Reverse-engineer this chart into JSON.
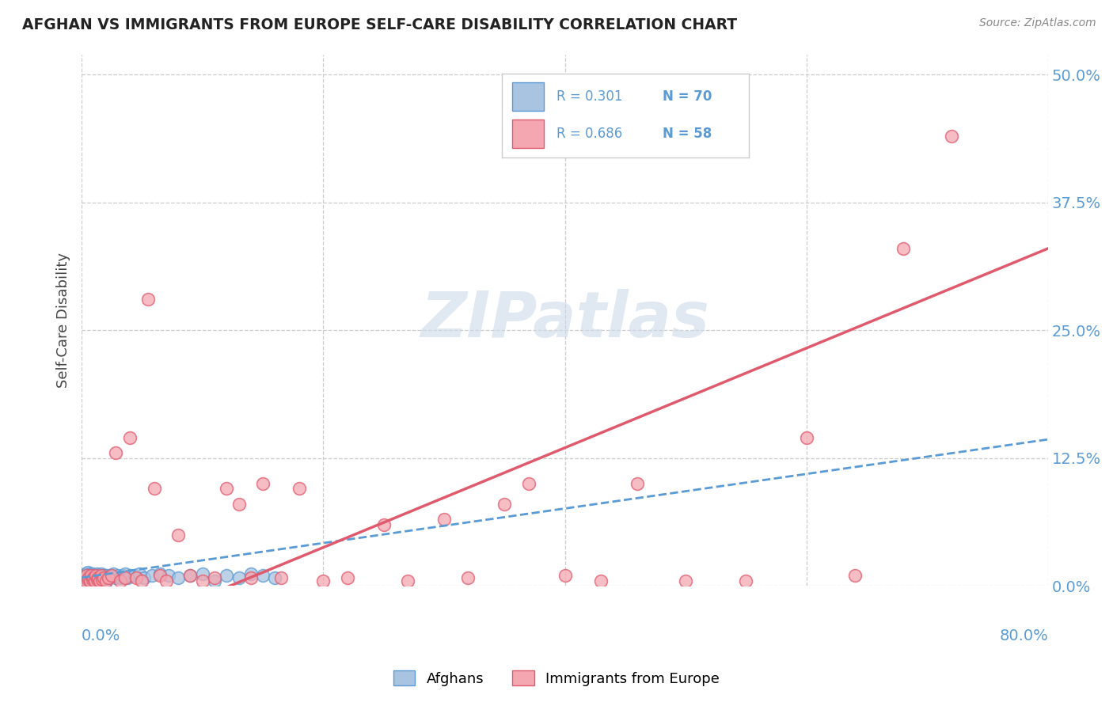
{
  "title": "AFGHAN VS IMMIGRANTS FROM EUROPE SELF-CARE DISABILITY CORRELATION CHART",
  "source": "Source: ZipAtlas.com",
  "ylabel": "Self-Care Disability",
  "ytick_values": [
    0.0,
    0.125,
    0.25,
    0.375,
    0.5
  ],
  "xlim": [
    0.0,
    0.8
  ],
  "ylim": [
    0.0,
    0.52
  ],
  "legend_r_blue": "R = 0.301",
  "legend_n_blue": "N = 70",
  "legend_r_pink": "R = 0.686",
  "legend_n_pink": "N = 58",
  "legend_label_blue": "Afghans",
  "legend_label_pink": "Immigrants from Europe",
  "blue_fill": "#a8c4e0",
  "blue_edge": "#5b9bd5",
  "pink_fill": "#f4a7b0",
  "pink_edge": "#e05a6e",
  "watermark_color": "#ccd9e8",
  "background_color": "#ffffff",
  "grid_color": "#cccccc",
  "title_color": "#222222",
  "source_color": "#888888",
  "axis_label_color": "#5b9bd5",
  "af_slope": 0.169,
  "af_intercept": 0.008,
  "eu_slope": 0.4875,
  "eu_intercept": -0.06,
  "afghans_x": [
    0.001,
    0.002,
    0.002,
    0.003,
    0.003,
    0.003,
    0.004,
    0.004,
    0.004,
    0.005,
    0.005,
    0.005,
    0.005,
    0.006,
    0.006,
    0.006,
    0.007,
    0.007,
    0.007,
    0.008,
    0.008,
    0.008,
    0.009,
    0.009,
    0.009,
    0.01,
    0.01,
    0.01,
    0.011,
    0.011,
    0.012,
    0.012,
    0.013,
    0.013,
    0.014,
    0.014,
    0.015,
    0.015,
    0.016,
    0.016,
    0.017,
    0.018,
    0.019,
    0.02,
    0.021,
    0.022,
    0.024,
    0.026,
    0.028,
    0.03,
    0.032,
    0.034,
    0.036,
    0.038,
    0.04,
    0.044,
    0.048,
    0.052,
    0.058,
    0.065,
    0.072,
    0.08,
    0.09,
    0.1,
    0.11,
    0.12,
    0.13,
    0.14,
    0.15,
    0.16
  ],
  "afghans_y": [
    0.008,
    0.005,
    0.01,
    0.008,
    0.012,
    0.006,
    0.005,
    0.01,
    0.012,
    0.005,
    0.008,
    0.01,
    0.013,
    0.005,
    0.01,
    0.008,
    0.005,
    0.01,
    0.012,
    0.005,
    0.008,
    0.01,
    0.005,
    0.01,
    0.012,
    0.005,
    0.008,
    0.01,
    0.005,
    0.01,
    0.008,
    0.01,
    0.005,
    0.012,
    0.008,
    0.01,
    0.005,
    0.01,
    0.008,
    0.012,
    0.01,
    0.008,
    0.01,
    0.005,
    0.01,
    0.008,
    0.01,
    0.012,
    0.008,
    0.01,
    0.008,
    0.01,
    0.012,
    0.008,
    0.01,
    0.01,
    0.012,
    0.008,
    0.01,
    0.012,
    0.01,
    0.008,
    0.01,
    0.012,
    0.005,
    0.01,
    0.008,
    0.012,
    0.01,
    0.008
  ],
  "europe_x": [
    0.001,
    0.002,
    0.003,
    0.004,
    0.005,
    0.006,
    0.007,
    0.008,
    0.009,
    0.01,
    0.011,
    0.012,
    0.013,
    0.014,
    0.015,
    0.016,
    0.017,
    0.018,
    0.02,
    0.022,
    0.025,
    0.028,
    0.032,
    0.036,
    0.04,
    0.045,
    0.05,
    0.055,
    0.06,
    0.065,
    0.07,
    0.08,
    0.09,
    0.1,
    0.11,
    0.12,
    0.13,
    0.14,
    0.15,
    0.165,
    0.18,
    0.2,
    0.22,
    0.25,
    0.27,
    0.3,
    0.32,
    0.35,
    0.37,
    0.4,
    0.43,
    0.46,
    0.5,
    0.55,
    0.6,
    0.64,
    0.68,
    0.72
  ],
  "europe_y": [
    0.005,
    0.008,
    0.005,
    0.01,
    0.006,
    0.008,
    0.005,
    0.01,
    0.006,
    0.008,
    0.005,
    0.01,
    0.006,
    0.008,
    0.005,
    0.01,
    0.006,
    0.008,
    0.005,
    0.008,
    0.01,
    0.13,
    0.005,
    0.008,
    0.145,
    0.008,
    0.005,
    0.28,
    0.095,
    0.01,
    0.005,
    0.05,
    0.01,
    0.005,
    0.008,
    0.095,
    0.08,
    0.008,
    0.1,
    0.008,
    0.095,
    0.005,
    0.008,
    0.06,
    0.005,
    0.065,
    0.008,
    0.08,
    0.1,
    0.01,
    0.005,
    0.1,
    0.005,
    0.005,
    0.145,
    0.01,
    0.33,
    0.44
  ]
}
